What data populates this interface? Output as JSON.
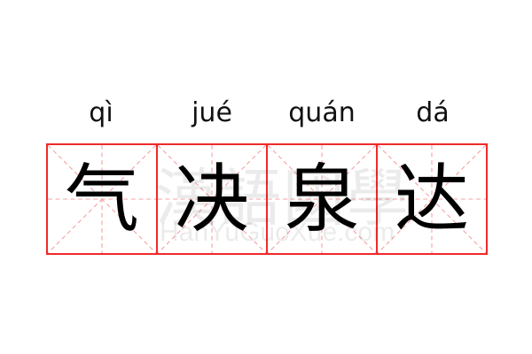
{
  "words": [
    {
      "pinyin": "qì",
      "hanzi": "气"
    },
    {
      "pinyin": "jué",
      "hanzi": "决"
    },
    {
      "pinyin": "quán",
      "hanzi": "泉"
    },
    {
      "pinyin": "dá",
      "hanzi": "达"
    }
  ],
  "watermark": {
    "chinese": "漢語國學",
    "latin": "HanYuGuoXue.com"
  },
  "colors": {
    "grid_border": "#f02a2a",
    "guide_lines": "#f8a0a0",
    "text": "#000000"
  }
}
